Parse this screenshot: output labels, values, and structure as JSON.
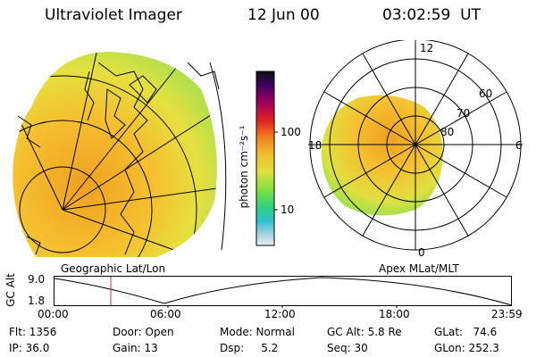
{
  "header": {
    "instrument": "Ultraviolet Imager",
    "date": "12 Jun 00",
    "time": "03:02:59  UT"
  },
  "colorbar": {
    "unit": "photon cm⁻²s⁻¹",
    "tick_labels": [
      "100",
      "10"
    ]
  },
  "panels": {
    "left_label": "Geographic Lat/Lon",
    "right_label": "Apex MLat/MLT",
    "mlt_labels": [
      "12",
      "18",
      "6",
      "0"
    ],
    "mlat_labels": [
      "60",
      "70",
      "80"
    ]
  },
  "altitude_plot": {
    "ylabel": "GC Alt",
    "y_ticks": [
      "9.0",
      "1.8"
    ],
    "x_ticks": [
      "00:00",
      "06:00",
      "12:00",
      "18:00",
      "23:59"
    ]
  },
  "info": {
    "flt": "Flt: 1356",
    "ip": "IP: 36.0",
    "door": "Door: Open",
    "gain": "Gain: 13",
    "mode": "Mode: Normal",
    "dsp": "Dsp:     5.2",
    "gcalt": "GC Alt: 5.8 Re",
    "seq": "Seq: 30",
    "glat": "GLat:   74.6",
    "glon": "GLon: 252.3"
  }
}
